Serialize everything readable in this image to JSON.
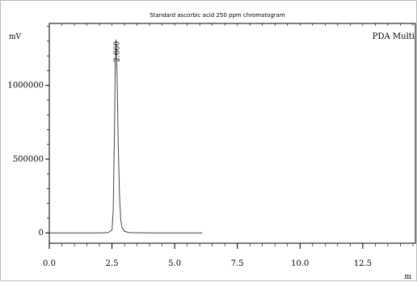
{
  "chart_data": {
    "type": "line",
    "title": "Standard ascorbic acid 250 ppm chromatogram",
    "ylabel": "mV",
    "xlabel": "m",
    "xlim": [
      0,
      14.6
    ],
    "ylim": [
      -70000,
      1420000
    ],
    "x_ticks": [
      0.0,
      2.5,
      5.0,
      7.5,
      10.0,
      12.5
    ],
    "x_tick_labels": [
      "0.0",
      "2.5",
      "5.0",
      "7.5",
      "10.0",
      "12.5"
    ],
    "y_ticks": [
      0,
      500000,
      1000000
    ],
    "y_tick_labels": [
      "0",
      "500000",
      "1000000"
    ],
    "legend": "PDA Multi",
    "peak_label": "2.660",
    "series": [
      {
        "x": [
          0.0,
          1.0,
          2.0,
          2.35,
          2.5,
          2.55,
          2.6,
          2.63,
          2.66,
          2.7,
          2.75,
          2.8,
          2.85,
          2.9,
          3.0,
          3.2,
          4.0,
          5.0,
          6.1
        ],
        "y": [
          0,
          0,
          0,
          2000,
          20000,
          150000,
          700000,
          1150000,
          1310000,
          1100000,
          600000,
          250000,
          90000,
          35000,
          10000,
          2000,
          0,
          0,
          0
        ]
      }
    ]
  }
}
